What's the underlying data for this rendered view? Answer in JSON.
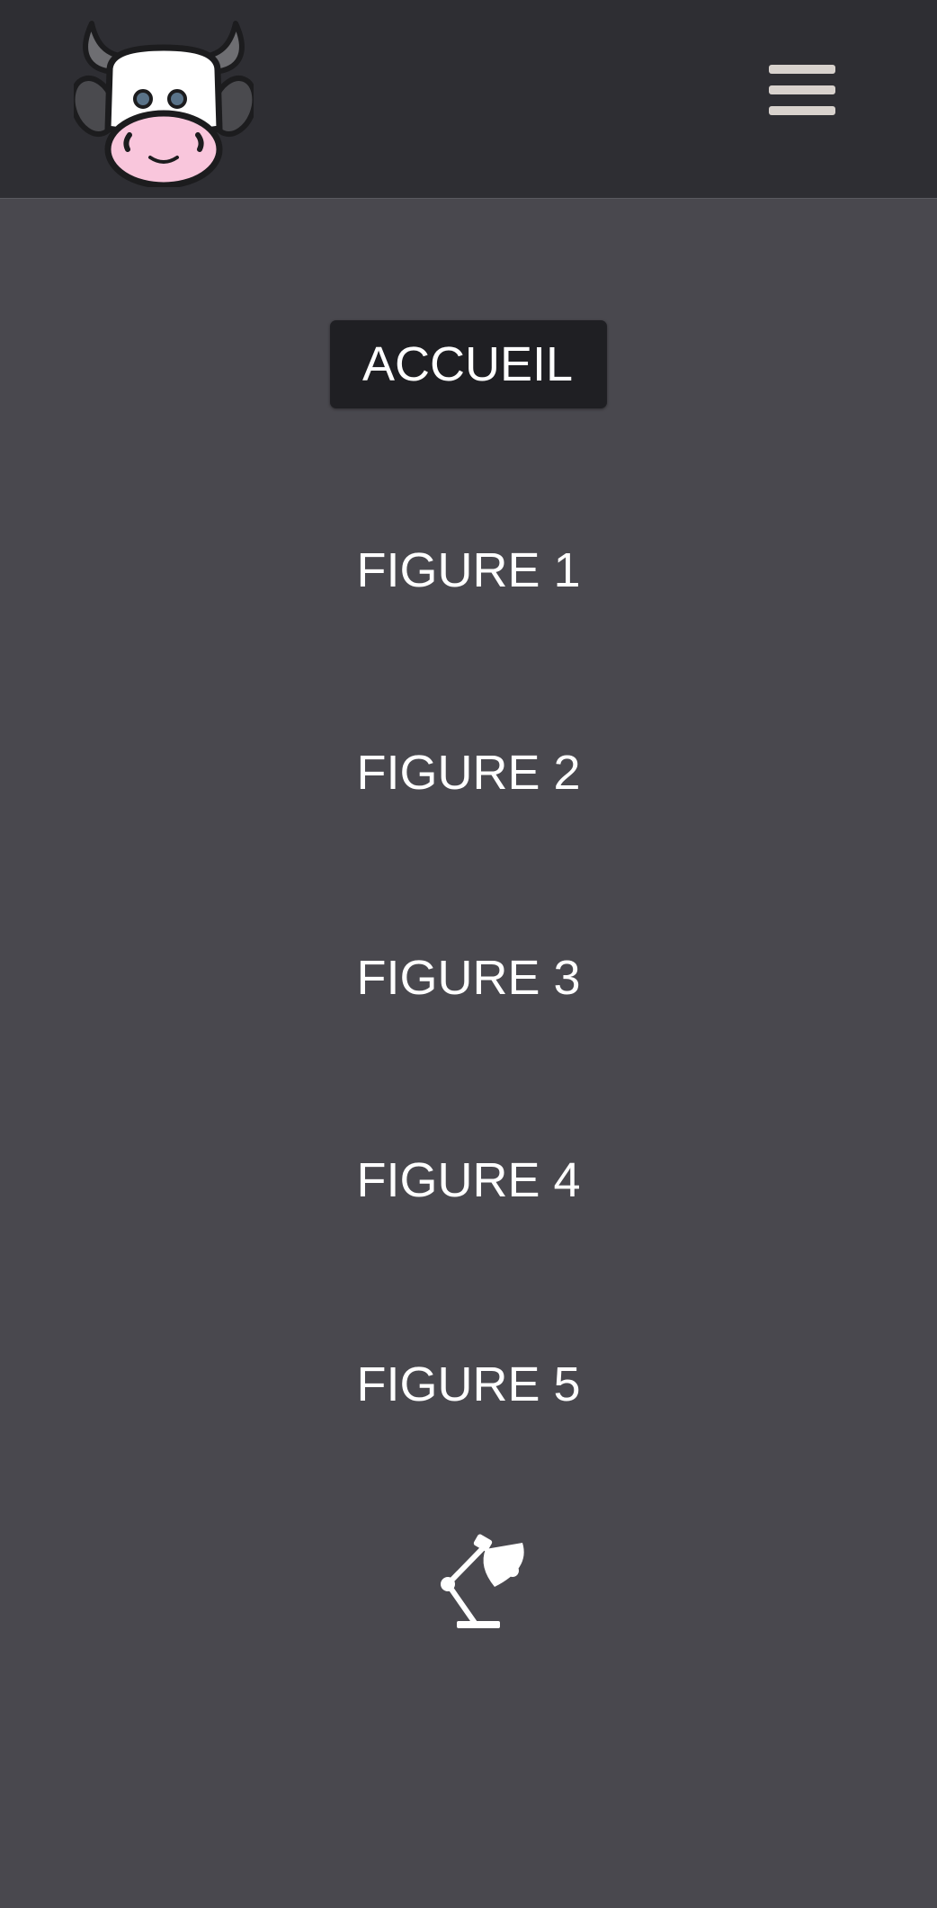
{
  "header": {
    "logo_icon": "cow-face-logo",
    "menu_icon": "hamburger-menu-icon"
  },
  "nav": {
    "items": [
      {
        "label": "ACCUEIL",
        "active": true
      },
      {
        "label": "FIGURE 1",
        "active": false
      },
      {
        "label": "FIGURE 2",
        "active": false
      },
      {
        "label": "FIGURE 3",
        "active": false
      },
      {
        "label": "FIGURE 4",
        "active": false
      },
      {
        "label": "FIGURE 5",
        "active": false
      }
    ]
  },
  "footer": {
    "theme_toggle_icon": "desk-lamp-icon"
  },
  "colors": {
    "header_bg": "#2e2e33",
    "page_bg": "#49484e",
    "active_bg": "#1f1f23",
    "text": "#ffffff",
    "menu_bars": "#d8d2cd"
  }
}
